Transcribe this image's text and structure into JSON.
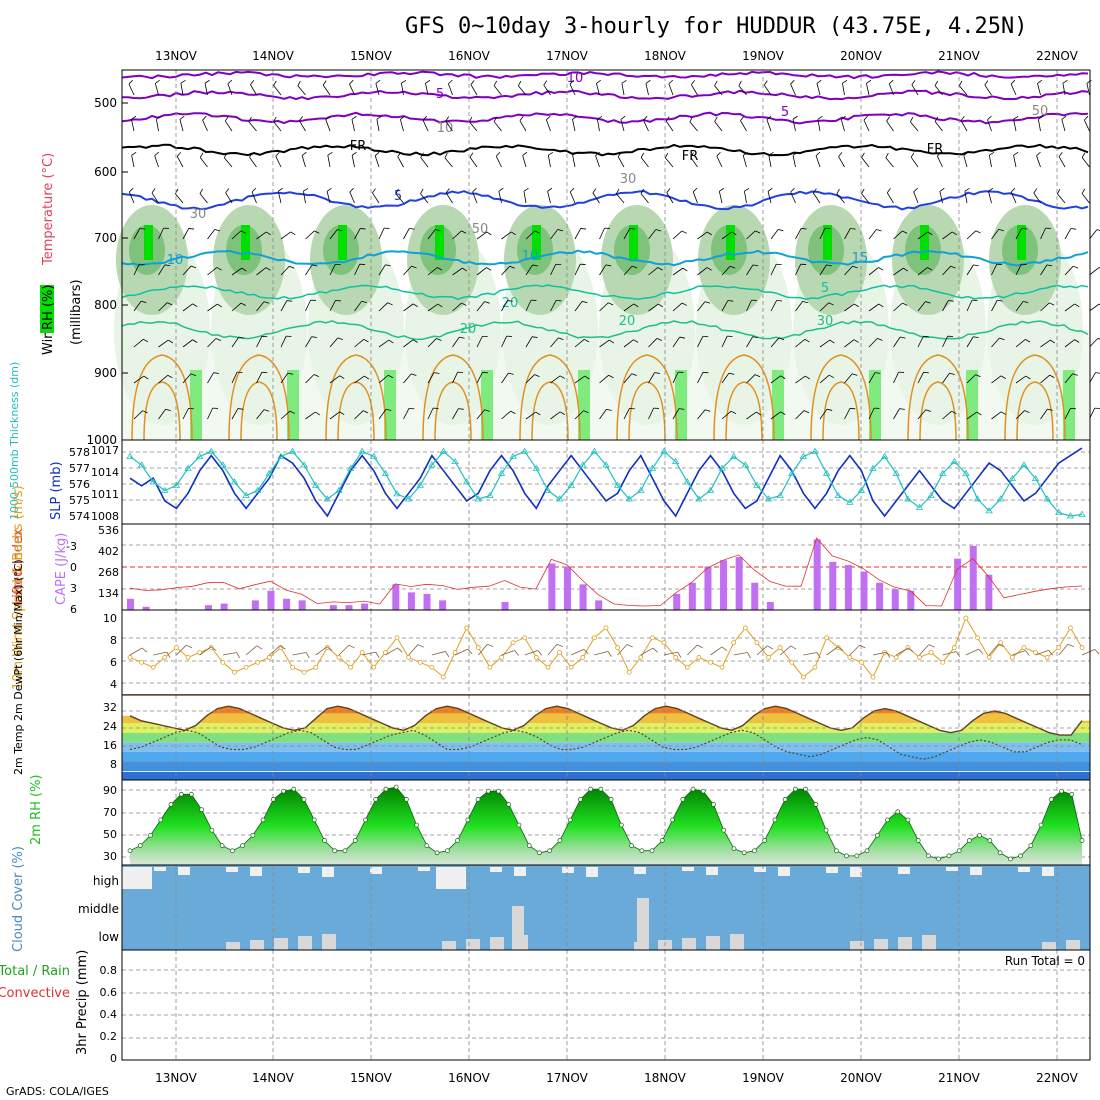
{
  "title": "GFS 0~10day 3-hourly for HUDDUR (43.75E, 4.25N)",
  "footer": "GrADS: COLA/IGES",
  "dates": [
    "13NOV",
    "14NOV",
    "15NOV",
    "16NOV",
    "17NOV",
    "18NOV",
    "19NOV",
    "20NOV",
    "21NOV",
    "22NOV"
  ],
  "colors": {
    "wind_barb": "#000000",
    "rh_light": "#e8f4e6",
    "rh_mid": "#b8d8b2",
    "rh_dark": "#7fc27c",
    "rh_bright": "#00e000",
    "temp_purple": "#8000c0",
    "temp_blue": "#2040e0",
    "temp_cyan": "#10a0d8",
    "temp_teal": "#10c0a0",
    "temp_green": "#20c080",
    "temp_orange": "#e09020",
    "slp": "#1030c0",
    "thickness": "#20c0c0",
    "cape": "#c070f0",
    "li": "#e03030",
    "wind10": "#e0a020",
    "rh2m": "#20c020",
    "cloud": "#6aaad8",
    "cloud_white": "#f0f0f0"
  },
  "panels": {
    "upper": {
      "ylabels": [
        "Wind (m/s)",
        "Temperature (°C)",
        "RH (%)",
        "(millibars)"
      ],
      "yticks": [
        "500",
        "600",
        "700",
        "800",
        "900",
        "1000"
      ],
      "contour_labels": [
        "10",
        "5",
        "5",
        "FR",
        "FR",
        "FR",
        "10",
        "5",
        "10",
        "10",
        "15",
        "5",
        "20",
        "20",
        "20",
        "30",
        "30",
        "30",
        "50",
        "50"
      ]
    },
    "thickness": {
      "ylabel_left": "1000-500mb Thickness (dm)",
      "ylabel_right": "SLP (mb)",
      "yticks_left": [
        "578",
        "577",
        "576",
        "575",
        "574"
      ],
      "yticks_right": [
        "1017",
        "1014",
        "1011",
        "1008"
      ]
    },
    "cape": {
      "ylabel_left": "Lifted Index",
      "ylabel_right": "CAPE (J/kg)",
      "yticks_left": [
        "-3",
        "0",
        "3",
        "6"
      ],
      "yticks_right": [
        "536",
        "402",
        "268",
        "134"
      ]
    },
    "wind10": {
      "ylabel": "10m Wind Speed & Barbs (m/s)",
      "yticks": [
        "10",
        "8",
        "6",
        "4"
      ]
    },
    "temp2m": {
      "ylabel": "2m Temp 2m DewPt (6hr Min/Max) (°C)",
      "yticks": [
        "32",
        "24",
        "16",
        "8"
      ]
    },
    "rh2m": {
      "ylabel": "2m RH (%)",
      "yticks": [
        "90",
        "70",
        "50",
        "30"
      ]
    },
    "cloud": {
      "ylabel": "Cloud Cover (%)",
      "levels": [
        "high",
        "middle",
        "low"
      ]
    },
    "precip": {
      "ylabel_a": "Total / Rain",
      "ylabel_b": "Convective",
      "ylabel_c": "3hr Precip (mm)",
      "yticks": [
        "0.8",
        "0.6",
        "0.4",
        "0.2",
        "0"
      ],
      "run_total": "Run Total = 0"
    }
  },
  "chart_data": [
    {
      "type": "line",
      "title": "1000-500mb Thickness (dm) / SLP (mb)",
      "series": [
        {
          "name": "SLP (mb)",
          "values": [
            1013,
            1012,
            1013,
            1010,
            1009,
            1011,
            1014,
            1016,
            1014,
            1011,
            1009,
            1011,
            1013,
            1016,
            1015,
            1013,
            1010,
            1008,
            1011,
            1014,
            1016,
            1014,
            1011,
            1009,
            1011,
            1013,
            1016,
            1014,
            1012,
            1010,
            1011,
            1014,
            1016,
            1014,
            1011,
            1009,
            1012,
            1014,
            1016,
            1014,
            1012,
            1010,
            1011,
            1014,
            1016,
            1013,
            1010,
            1008,
            1011,
            1014,
            1016,
            1014,
            1011,
            1009,
            1010,
            1013,
            1016,
            1014,
            1011,
            1009,
            1011,
            1014,
            1016,
            1014,
            1010,
            1008,
            1010,
            1012,
            1014,
            1012,
            1010,
            1009,
            1011,
            1013,
            1015,
            1014,
            1012,
            1010,
            1011,
            1013,
            1015,
            1016,
            1017
          ]
        },
        {
          "name": "1000-500mb Thickness (dm)",
          "values": [
            577.5,
            577.0,
            576.0,
            575.5,
            575.8,
            576.8,
            577.5,
            577.8,
            577.0,
            576.0,
            575.2,
            575.5,
            576.5,
            577.5,
            577.8,
            577.0,
            575.8,
            575.0,
            575.5,
            576.8,
            577.8,
            577.5,
            576.5,
            575.3,
            575.0,
            575.8,
            577.0,
            577.8,
            577.2,
            576.0,
            575.0,
            575.2,
            576.5,
            577.5,
            577.8,
            576.8,
            575.5,
            575.0,
            575.8,
            577.0,
            577.8,
            577.0,
            575.8,
            575.0,
            575.5,
            576.8,
            577.8,
            577.2,
            576.0,
            575.0,
            575.5,
            576.8,
            577.5,
            577.0,
            575.8,
            575.0,
            575.2,
            576.5,
            577.5,
            577.8,
            576.5,
            575.2,
            574.8,
            575.5,
            576.8,
            577.5,
            576.5,
            575.0,
            574.5,
            575.2,
            576.5,
            577.2,
            576.5,
            575.0,
            574.3,
            575.0,
            576.2,
            577.0,
            576.2,
            575.0,
            574.2,
            574.0,
            574.1
          ]
        }
      ]
    },
    {
      "type": "bar",
      "title": "CAPE (J/kg)",
      "values": [
        70,
        20,
        0,
        0,
        0,
        30,
        40,
        0,
        60,
        120,
        70,
        60,
        0,
        30,
        30,
        40,
        0,
        160,
        110,
        100,
        60,
        0,
        0,
        0,
        50,
        0,
        0,
        290,
        270,
        160,
        60,
        0,
        0,
        0,
        0,
        100,
        170,
        270,
        310,
        330,
        170,
        50,
        0,
        0,
        440,
        300,
        280,
        240,
        170,
        130,
        120,
        0,
        0,
        320,
        400,
        220,
        0,
        0,
        0,
        0,
        0,
        0
      ]
    },
    {
      "type": "line",
      "title": "10m Wind Speed (m/s)",
      "values": [
        6,
        5.5,
        5,
        6,
        7,
        6,
        6.5,
        7,
        5.5,
        4.5,
        5,
        5.5,
        6,
        7,
        5,
        4.5,
        5,
        7,
        6,
        5,
        6.5,
        5,
        6.5,
        8,
        6,
        5.5,
        5,
        4,
        6.5,
        9,
        7,
        5,
        6,
        7.5,
        8,
        6,
        5,
        6.5,
        5,
        6,
        8,
        9,
        7,
        4.5,
        6,
        8,
        7.5,
        6,
        5,
        6,
        5.5,
        5,
        7.5,
        9,
        7.5,
        6,
        7,
        5.5,
        4,
        5,
        8,
        7,
        6,
        5.5,
        4,
        6.5,
        6,
        7,
        6,
        6.5,
        5.5,
        7,
        10,
        8,
        6,
        7.5,
        6,
        7,
        6.5,
        6,
        7,
        9,
        7
      ]
    },
    {
      "type": "area",
      "title": "2m Temp / 2m DewPt (°C)",
      "series": [
        {
          "name": "2m Temp",
          "values": [
            27,
            25,
            24,
            23,
            22,
            21,
            23,
            27,
            30,
            31,
            30,
            28,
            26,
            24,
            22,
            21,
            22,
            26,
            30,
            31,
            30,
            28,
            26,
            24,
            22,
            21,
            23,
            27,
            30,
            31,
            30,
            28,
            26,
            24,
            22,
            21,
            23,
            27,
            30,
            31,
            30,
            28,
            26,
            24,
            22,
            21,
            23,
            27,
            30,
            31,
            30,
            28,
            26,
            24,
            22,
            21,
            23,
            27,
            30,
            31,
            30,
            28,
            26,
            24,
            22,
            21,
            22,
            26,
            29,
            30,
            29,
            27,
            25,
            23,
            21,
            20,
            21,
            25,
            28,
            29,
            28,
            26,
            24,
            22,
            20,
            19,
            19,
            25
          ]
        },
        {
          "name": "2m DewPt",
          "values": [
            13,
            14,
            16,
            18,
            20,
            21,
            20,
            17,
            14,
            13,
            13,
            14,
            16,
            18,
            20,
            21,
            20,
            17,
            14,
            13,
            13,
            15,
            17,
            19,
            20,
            21,
            19,
            16,
            13,
            13,
            14,
            16,
            18,
            20,
            21,
            20,
            18,
            15,
            13,
            13,
            14,
            16,
            18,
            20,
            21,
            20,
            17,
            14,
            13,
            13,
            14,
            16,
            18,
            20,
            21,
            20,
            17,
            14,
            12,
            11,
            10,
            11,
            13,
            15,
            17,
            18,
            17,
            14,
            11,
            10,
            9,
            10,
            12,
            14,
            16,
            17,
            16,
            14,
            12,
            12,
            14,
            16,
            17,
            17,
            15
          ]
        }
      ]
    },
    {
      "type": "area",
      "title": "2m RH (%)",
      "values": [
        30,
        35,
        45,
        60,
        75,
        85,
        85,
        70,
        50,
        35,
        30,
        35,
        45,
        60,
        80,
        88,
        90,
        80,
        60,
        40,
        30,
        30,
        40,
        60,
        80,
        90,
        92,
        80,
        55,
        35,
        28,
        30,
        40,
        60,
        80,
        88,
        88,
        75,
        55,
        35,
        28,
        30,
        40,
        60,
        80,
        90,
        90,
        80,
        55,
        35,
        30,
        30,
        40,
        60,
        80,
        90,
        88,
        75,
        50,
        32,
        28,
        30,
        40,
        60,
        80,
        90,
        90,
        75,
        50,
        30,
        25,
        25,
        30,
        45,
        60,
        68,
        60,
        40,
        25,
        22,
        25,
        30,
        40,
        45,
        40,
        28,
        22,
        25,
        35,
        55,
        80,
        88,
        85,
        40
      ]
    },
    {
      "type": "bar",
      "title": "3hr Precip (mm)",
      "values": [
        0,
        0,
        0,
        0,
        0,
        0,
        0,
        0,
        0,
        0
      ],
      "ylim": [
        0,
        1
      ]
    }
  ]
}
